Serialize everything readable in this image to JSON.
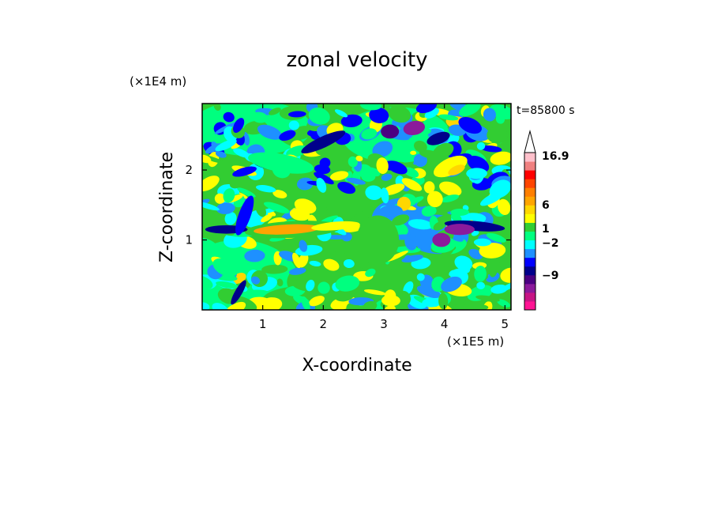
{
  "chart_data": {
    "type": "heatmap",
    "title": "zonal velocity",
    "xlabel": "X-coordinate",
    "ylabel": "Z-coordinate",
    "x_scale_note": "(×1E5 m)",
    "y_scale_note": "(×1E4 m)",
    "time_label": "t=85800 s",
    "x_range": [
      0.0,
      5.1
    ],
    "y_range": [
      0.0,
      2.95
    ],
    "x_ticks": [
      "1",
      "2",
      "3",
      "4",
      "5"
    ],
    "y_ticks": [
      "1",
      "2"
    ],
    "colorbar": {
      "labels": [
        "16.9",
        "6",
        "1",
        "−2",
        "−9"
      ],
      "level_colors": [
        "#ff1493",
        "#c71585",
        "#8b1a9b",
        "#4b0082",
        "#00008b",
        "#0000ff",
        "#1e90ff",
        "#00ffff",
        "#00ff7f",
        "#32cd32",
        "#ffff00",
        "#ffd700",
        "#ffa500",
        "#ff7f00",
        "#ff4500",
        "#ff0000",
        "#f08080",
        "#ffc0cb"
      ]
    },
    "field_description_features": [
      {
        "name": "jet core",
        "x": 1.5,
        "z": 1.15,
        "value": 7
      },
      {
        "name": "low-level jet",
        "x": 0.4,
        "z": 1.1,
        "value": -6
      },
      {
        "name": "upper blue band",
        "x": 1.3,
        "z": 2.1,
        "value": -5
      },
      {
        "name": "upper orange",
        "x": 4.1,
        "z": 2.05,
        "value": 5
      }
    ]
  }
}
